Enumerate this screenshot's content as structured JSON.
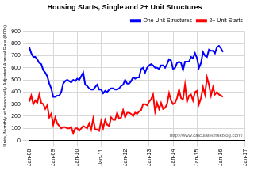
{
  "chart_data": {
    "type": "line",
    "title": "Housing Starts, Single and 2+ Unit Structures",
    "y_label": "Units, Monthly at Seasonally Adjusted Annual Rate (000s)",
    "annotations": [
      "http://www.calculatedriskblog.com/"
    ],
    "categories": [
      "Jan-08",
      null,
      null,
      null,
      null,
      null,
      null,
      null,
      null,
      null,
      null,
      null,
      "Jan-09",
      null,
      null,
      null,
      null,
      null,
      null,
      null,
      null,
      null,
      null,
      null,
      "Jan-10",
      null,
      null,
      null,
      null,
      null,
      null,
      null,
      null,
      null,
      null,
      null,
      "Jan-11",
      null,
      null,
      null,
      null,
      null,
      null,
      null,
      null,
      null,
      null,
      null,
      "Jan-12",
      null,
      null,
      null,
      null,
      null,
      null,
      null,
      null,
      null,
      null,
      null,
      "Jan-13",
      null,
      null,
      null,
      null,
      null,
      null,
      null,
      null,
      null,
      null,
      null,
      "Jan-14",
      null,
      null,
      null,
      null,
      null,
      null,
      null,
      null,
      null,
      null,
      null,
      "Jan-15",
      null,
      null,
      null,
      null,
      null,
      null,
      null,
      null,
      null,
      null,
      null,
      "Jan-16",
      null,
      null,
      null,
      null,
      null,
      null,
      null,
      null,
      null,
      null,
      null,
      "Jan-17"
    ],
    "series": [
      {
        "name": "One Unit Structures",
        "color": "#0000ff",
        "values": [
          770,
          720,
          690,
          690,
          670,
          640,
          630,
          580,
          560,
          530,
          470,
          430,
          360,
          360,
          370,
          370,
          400,
          470,
          490,
          500,
          490,
          480,
          500,
          490,
          510,
          500,
          530,
          560,
          460,
          450,
          430,
          420,
          420,
          440,
          460,
          420,
          420,
          390,
          410,
          400,
          420,
          430,
          430,
          420,
          420,
          430,
          450,
          460,
          500,
          470,
          470,
          490,
          520,
          510,
          520,
          520,
          590,
          600,
          560,
          600,
          620,
          630,
          620,
          600,
          600,
          590,
          620,
          620,
          600,
          630,
          670,
          660,
          590,
          600,
          640,
          650,
          640,
          580,
          650,
          650,
          650,
          690,
          680,
          720,
          680,
          600,
          640,
          730,
          700,
          690,
          750,
          740,
          740,
          720,
          770,
          780,
          760,
          730,
          null,
          null,
          null,
          null,
          null,
          null,
          null,
          null,
          null,
          null,
          null
        ]
      },
      {
        "name": "2+ Unit Starts",
        "color": "#ff0000",
        "values": [
          320,
          370,
          300,
          330,
          310,
          380,
          310,
          300,
          260,
          290,
          190,
          220,
          130,
          190,
          140,
          120,
          100,
          110,
          110,
          100,
          100,
          110,
          60,
          100,
          100,
          80,
          100,
          120,
          110,
          100,
          140,
          90,
          180,
          90,
          90,
          80,
          160,
          100,
          170,
          130,
          120,
          190,
          170,
          170,
          230,
          180,
          190,
          250,
          190,
          230,
          230,
          220,
          200,
          230,
          220,
          240,
          250,
          300,
          300,
          290,
          320,
          340,
          380,
          240,
          310,
          260,
          310,
          260,
          270,
          300,
          390,
          330,
          300,
          310,
          350,
          420,
          350,
          340,
          460,
          320,
          370,
          380,
          330,
          400,
          410,
          300,
          350,
          440,
          380,
          520,
          460,
          370,
          440,
          380,
          400,
          380,
          370,
          360,
          null,
          null,
          null,
          null,
          null,
          null,
          null,
          null,
          null,
          null,
          null
        ]
      }
    ],
    "ylim": [
      0,
      900
    ],
    "yticks": [
      0,
      100,
      200,
      300,
      400,
      500,
      600,
      700,
      800,
      900
    ],
    "grid": true,
    "legend": "top"
  }
}
